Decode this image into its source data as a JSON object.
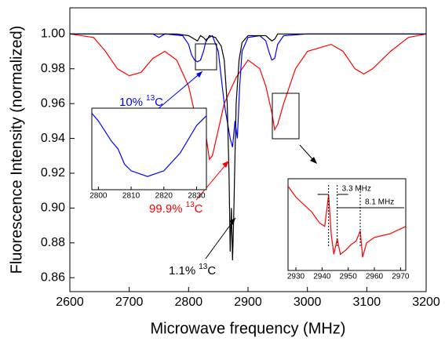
{
  "chart_data": [
    {
      "type": "line",
      "xlabel": "Microwave frequency (MHz)",
      "ylabel": "Fluorescence Intensity (normalized)",
      "xlim": [
        2600,
        3200
      ],
      "ylim": [
        0.852,
        1.015
      ],
      "xticks": [
        2600,
        2700,
        2800,
        2900,
        3000,
        3100,
        3200
      ],
      "yticks": [
        0.86,
        0.88,
        {
          "value": 0.9,
          "label": "0.90"
        },
        0.92,
        0.94,
        0.96,
        0.98,
        {
          "value": 1.0,
          "label": "1.00"
        }
      ],
      "annotations": [
        {
          "text": "10%",
          "sup": "13",
          "element": "C",
          "color": "#0000ff"
        },
        {
          "text": "99.9%",
          "sup": "13",
          "element": "C",
          "color": "#ff0000"
        },
        {
          "text": "1.1%",
          "sup": "13",
          "element": "C",
          "color": "#000000"
        }
      ],
      "series": [
        {
          "color": "#ff0000",
          "x": [
            2600,
            2640,
            2660,
            2680,
            2700,
            2720,
            2740,
            2760,
            2780,
            2800,
            2810,
            2815,
            2820,
            2825,
            2830,
            2835,
            2840,
            2850,
            2860,
            2880,
            2900,
            2920,
            2930,
            2940,
            2945,
            2950,
            2960,
            2980,
            3000,
            3040,
            3060,
            3080,
            3095,
            3110,
            3140,
            3170,
            3200
          ],
          "values": [
            1.0,
            0.998,
            0.99,
            0.98,
            0.976,
            0.978,
            0.986,
            0.99,
            0.985,
            0.97,
            0.955,
            0.945,
            0.93,
            0.935,
            0.94,
            0.928,
            0.93,
            0.945,
            0.96,
            0.975,
            0.985,
            0.98,
            0.97,
            0.955,
            0.945,
            0.948,
            0.96,
            0.98,
            0.99,
            0.994,
            0.99,
            0.98,
            0.977,
            0.98,
            0.99,
            0.998,
            1.0
          ]
        },
        {
          "color": "#0000ff",
          "x": [
            2600,
            2740,
            2750,
            2760,
            2790,
            2800,
            2805,
            2810,
            2815,
            2820,
            2825,
            2830,
            2840,
            2850,
            2855,
            2860,
            2865,
            2870,
            2874,
            2878,
            2882,
            2886,
            2890,
            2900,
            2920,
            2930,
            2935,
            2940,
            2945,
            2950,
            2960,
            3000,
            3200
          ],
          "values": [
            1.0,
            1.0,
            0.998,
            1.0,
            0.999,
            0.994,
            0.988,
            0.985,
            0.984,
            0.985,
            0.99,
            0.997,
            0.999,
            0.99,
            0.975,
            0.96,
            0.95,
            0.94,
            0.935,
            0.95,
            0.94,
            0.97,
            0.99,
            0.998,
            0.999,
            0.996,
            0.99,
            0.985,
            0.986,
            0.994,
            0.999,
            1.0,
            1.0
          ]
        },
        {
          "color": "#000000",
          "x": [
            2600,
            2780,
            2800,
            2810,
            2815,
            2820,
            2825,
            2830,
            2835,
            2845,
            2855,
            2860,
            2865,
            2868,
            2870,
            2872,
            2874,
            2876,
            2878,
            2880,
            2885,
            2890,
            2900,
            2930,
            2940,
            2945,
            2950,
            2980,
            3200
          ],
          "values": [
            1.0,
            1.0,
            0.999,
            0.997,
            0.996,
            0.999,
            0.998,
            0.996,
            0.999,
            0.998,
            0.993,
            0.985,
            0.96,
            0.92,
            0.875,
            0.9,
            0.87,
            0.895,
            0.93,
            0.96,
            0.985,
            0.995,
            0.999,
            0.999,
            0.996,
            0.997,
            1.0,
            1.0,
            1.0
          ]
        }
      ]
    },
    {
      "type": "line",
      "xlim": [
        2798,
        2833
      ],
      "ylim": [
        0.983,
        0.999
      ],
      "xticks": [
        2800,
        2810,
        2820,
        2830
      ],
      "series": [
        {
          "color": "#0000ff",
          "x": [
            2798,
            2800,
            2802,
            2804,
            2806,
            2808,
            2810,
            2815,
            2820,
            2825,
            2830,
            2833
          ],
          "values": [
            0.998,
            0.9965,
            0.9945,
            0.9925,
            0.991,
            0.988,
            0.9867,
            0.9856,
            0.9867,
            0.9902,
            0.9956,
            0.9975
          ]
        }
      ]
    },
    {
      "type": "line",
      "xlim": [
        2927,
        2972
      ],
      "ylim": [
        0.935,
        0.96
      ],
      "xticks": [
        2930,
        2940,
        2950,
        2960,
        2970
      ],
      "markers": [
        2942.5,
        2945.8,
        2954.6
      ],
      "marker_labels": [
        "3.3 MHz",
        "8.1 MHz"
      ],
      "series": [
        {
          "color": "#ff0000",
          "x": [
            2927,
            2930,
            2933,
            2936,
            2939,
            2941,
            2942.5,
            2943.5,
            2944.5,
            2945.8,
            2947,
            2949,
            2951,
            2953,
            2954.6,
            2955.5,
            2957,
            2960,
            2963,
            2966,
            2969,
            2972
          ],
          "values": [
            0.958,
            0.955,
            0.953,
            0.951,
            0.948,
            0.947,
            0.9556,
            0.945,
            0.9394,
            0.9436,
            0.9394,
            0.9405,
            0.942,
            0.943,
            0.9458,
            0.9386,
            0.9425,
            0.944,
            0.9445,
            0.945,
            0.946,
            0.947
          ]
        }
      ]
    }
  ]
}
